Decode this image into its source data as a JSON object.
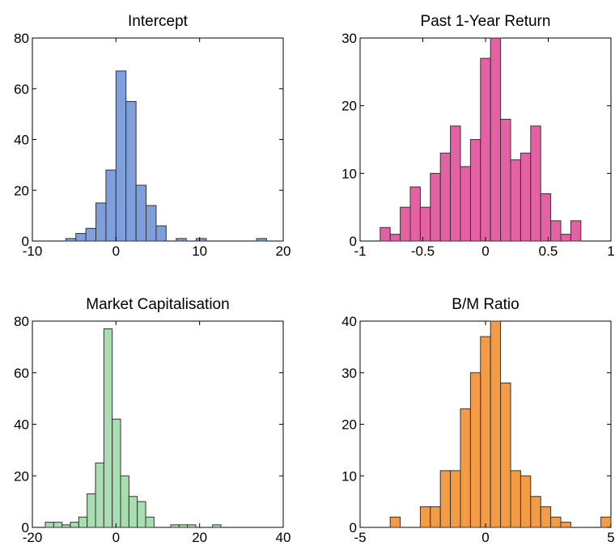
{
  "chart_data": [
    {
      "type": "bar",
      "title": "Intercept",
      "xlim": [
        -10,
        20
      ],
      "ylim": [
        0,
        80
      ],
      "xticks": [
        "-10",
        "0",
        "10",
        "20"
      ],
      "yticks": [
        "0",
        "20",
        "40",
        "60",
        "80"
      ],
      "color": "#7e9fdc",
      "bin_width": 1.2,
      "bins": [
        {
          "x": -5.4,
          "y": 1
        },
        {
          "x": -4.2,
          "y": 3
        },
        {
          "x": -3.0,
          "y": 5
        },
        {
          "x": -1.8,
          "y": 15
        },
        {
          "x": -0.6,
          "y": 28
        },
        {
          "x": 0.6,
          "y": 67
        },
        {
          "x": 1.8,
          "y": 55
        },
        {
          "x": 3.0,
          "y": 22
        },
        {
          "x": 4.2,
          "y": 14
        },
        {
          "x": 5.4,
          "y": 6
        },
        {
          "x": 7.8,
          "y": 1
        },
        {
          "x": 10.2,
          "y": 1
        },
        {
          "x": 17.4,
          "y": 1
        }
      ]
    },
    {
      "type": "bar",
      "title": "Past 1-Year Return",
      "xlim": [
        -1,
        1
      ],
      "ylim": [
        0,
        30
      ],
      "xticks": [
        "-1",
        "-0.5",
        "0",
        "0.5",
        "1"
      ],
      "yticks": [
        "0",
        "10",
        "20",
        "30"
      ],
      "color": "#e462a4",
      "bin_width": 0.08,
      "bins": [
        {
          "x": -0.8,
          "y": 2
        },
        {
          "x": -0.72,
          "y": 1
        },
        {
          "x": -0.64,
          "y": 5
        },
        {
          "x": -0.56,
          "y": 8
        },
        {
          "x": -0.48,
          "y": 5
        },
        {
          "x": -0.4,
          "y": 10
        },
        {
          "x": -0.32,
          "y": 13
        },
        {
          "x": -0.24,
          "y": 17
        },
        {
          "x": -0.16,
          "y": 11
        },
        {
          "x": -0.08,
          "y": 15
        },
        {
          "x": 0.0,
          "y": 27
        },
        {
          "x": 0.08,
          "y": 30
        },
        {
          "x": 0.16,
          "y": 18
        },
        {
          "x": 0.24,
          "y": 12
        },
        {
          "x": 0.32,
          "y": 13
        },
        {
          "x": 0.4,
          "y": 17
        },
        {
          "x": 0.48,
          "y": 7
        },
        {
          "x": 0.56,
          "y": 3
        },
        {
          "x": 0.64,
          "y": 1
        },
        {
          "x": 0.72,
          "y": 3
        }
      ]
    },
    {
      "type": "bar",
      "title": "Market Capitalisation",
      "xlim": [
        -20,
        40
      ],
      "ylim": [
        0,
        80
      ],
      "xticks": [
        "-20",
        "0",
        "20",
        "40"
      ],
      "yticks": [
        "0",
        "20",
        "40",
        "60",
        "80"
      ],
      "color": "#a9ddb2",
      "bin_width": 2.0,
      "bins": [
        {
          "x": -15.9,
          "y": 2
        },
        {
          "x": -13.9,
          "y": 2
        },
        {
          "x": -11.9,
          "y": 1
        },
        {
          "x": -9.9,
          "y": 2
        },
        {
          "x": -7.9,
          "y": 4
        },
        {
          "x": -5.9,
          "y": 13
        },
        {
          "x": -3.9,
          "y": 25
        },
        {
          "x": -1.9,
          "y": 77
        },
        {
          "x": 0.1,
          "y": 42
        },
        {
          "x": 2.1,
          "y": 20
        },
        {
          "x": 4.1,
          "y": 12
        },
        {
          "x": 6.1,
          "y": 10
        },
        {
          "x": 8.1,
          "y": 4
        },
        {
          "x": 14.1,
          "y": 1
        },
        {
          "x": 16.1,
          "y": 1
        },
        {
          "x": 18.1,
          "y": 1
        },
        {
          "x": 24.1,
          "y": 1
        }
      ]
    },
    {
      "type": "bar",
      "title": "B/M Ratio",
      "xlim": [
        -5,
        5
      ],
      "ylim": [
        0,
        40
      ],
      "xticks": [
        "-5",
        "0",
        "5"
      ],
      "yticks": [
        "0",
        "10",
        "20",
        "30",
        "40"
      ],
      "color": "#f39c45",
      "bin_width": 0.4,
      "bins": [
        {
          "x": -3.6,
          "y": 2
        },
        {
          "x": -2.4,
          "y": 4
        },
        {
          "x": -2.0,
          "y": 4
        },
        {
          "x": -1.6,
          "y": 11
        },
        {
          "x": -1.2,
          "y": 11
        },
        {
          "x": -0.8,
          "y": 23
        },
        {
          "x": -0.4,
          "y": 30
        },
        {
          "x": 0.0,
          "y": 37
        },
        {
          "x": 0.4,
          "y": 40
        },
        {
          "x": 0.8,
          "y": 28
        },
        {
          "x": 1.2,
          "y": 11
        },
        {
          "x": 1.6,
          "y": 10
        },
        {
          "x": 2.0,
          "y": 6
        },
        {
          "x": 2.4,
          "y": 4
        },
        {
          "x": 2.8,
          "y": 2
        },
        {
          "x": 3.2,
          "y": 1
        },
        {
          "x": 4.8,
          "y": 2
        }
      ]
    }
  ]
}
